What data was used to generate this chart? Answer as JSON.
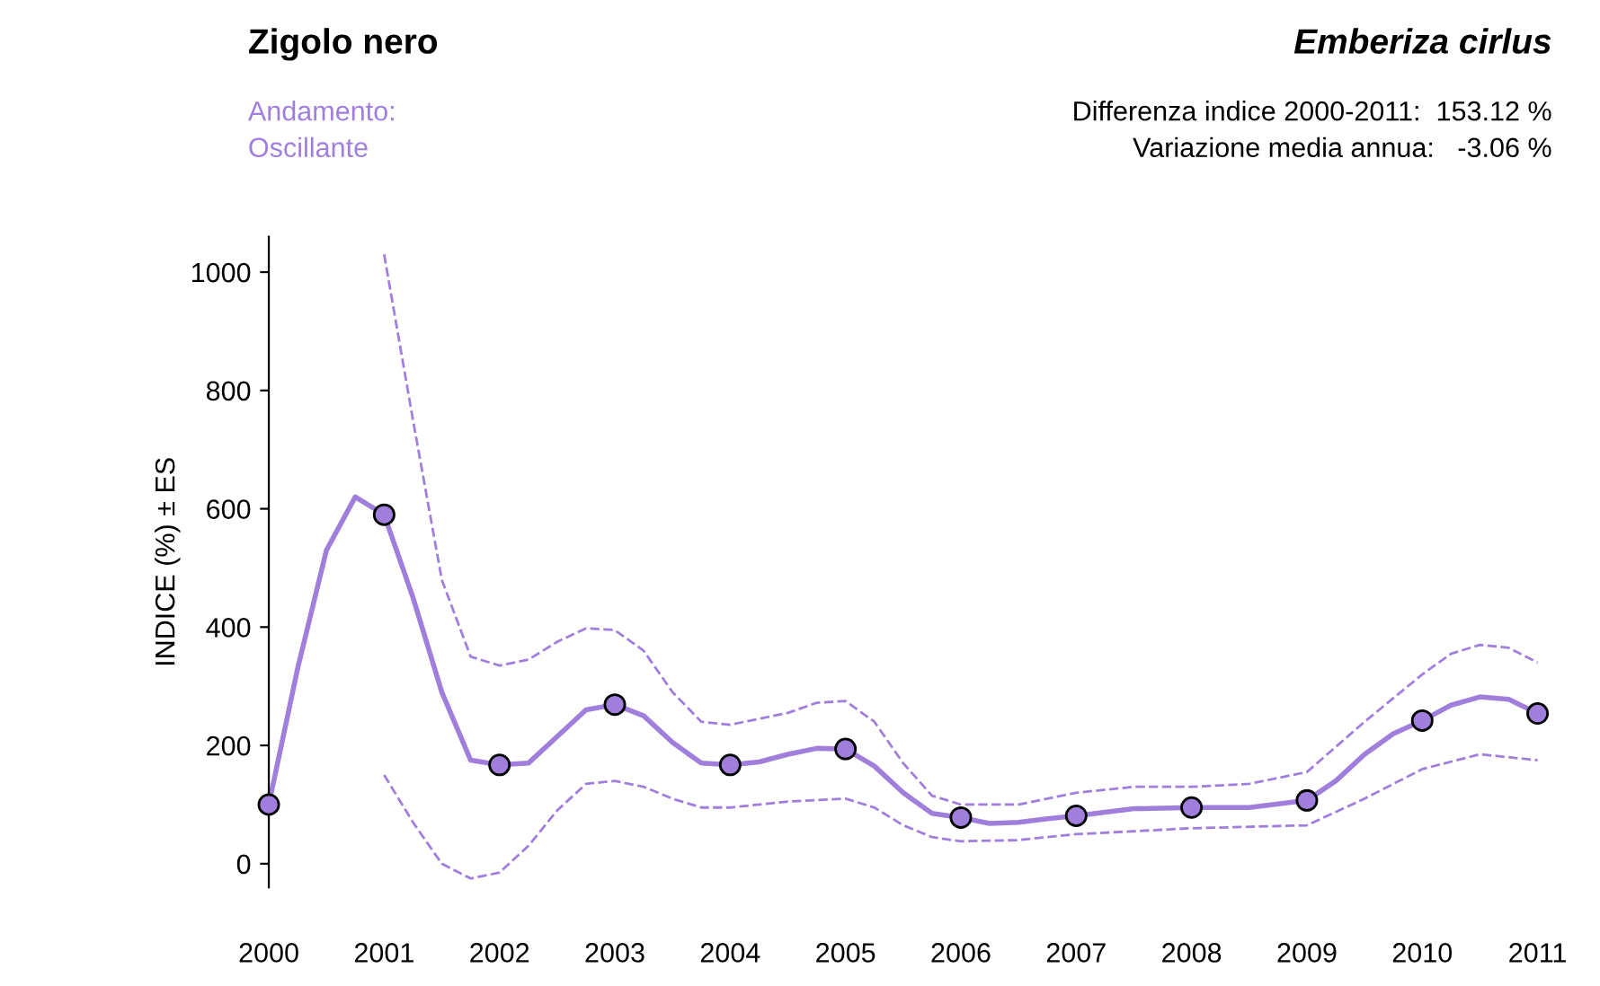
{
  "chart_data": {
    "type": "line",
    "title": "Zigolo nero",
    "subtitle": "Emberiza cirlus",
    "ylabel": "INDICE (%) ± ES",
    "annotations": [
      "Andamento:",
      "Oscillante",
      "Differenza indice 2000-2011:  153.12 %",
      "Variazione media annua:   -3.06 %"
    ],
    "xlim": [
      2000,
      2011
    ],
    "xticks": [
      2000,
      2001,
      2002,
      2003,
      2004,
      2005,
      2006,
      2007,
      2008,
      2009,
      2010,
      2011
    ],
    "ylim": [
      -40,
      1060
    ],
    "yticks": [
      0,
      200,
      400,
      600,
      800,
      1000
    ],
    "grid": false,
    "legend": false,
    "series": [
      {
        "line_style": "dashed",
        "color": "#a07fdc",
        "x": [
          2001,
          2001.25,
          2001.5,
          2001.75,
          2002,
          2002.25,
          2002.5,
          2002.75,
          2003,
          2003.25,
          2003.5,
          2003.75,
          2004,
          2004.5,
          2004.75,
          2005,
          2005.25,
          2005.5,
          2005.75,
          2006,
          2006.5,
          2007,
          2007.5,
          2008,
          2008.5,
          2009,
          2009.5,
          2010,
          2010.25,
          2010.5,
          2010.75,
          2011
        ],
        "values": [
          1030,
          750,
          480,
          350,
          335,
          345,
          375,
          398,
          395,
          360,
          290,
          240,
          235,
          255,
          272,
          275,
          240,
          170,
          115,
          100,
          100,
          120,
          130,
          130,
          135,
          155,
          240,
          320,
          355,
          370,
          365,
          340
        ]
      },
      {
        "line_style": "dashed",
        "color": "#a07fdc",
        "x": [
          2001,
          2001.25,
          2001.5,
          2001.75,
          2002,
          2002.25,
          2002.5,
          2002.75,
          2003,
          2003.25,
          2003.5,
          2003.75,
          2004,
          2004.5,
          2005,
          2005.25,
          2005.5,
          2005.75,
          2006,
          2006.5,
          2007,
          2008,
          2009,
          2009.5,
          2010,
          2010.5,
          2011
        ],
        "values": [
          150,
          70,
          0,
          -25,
          -15,
          30,
          90,
          135,
          140,
          130,
          110,
          95,
          95,
          105,
          110,
          95,
          65,
          45,
          38,
          40,
          50,
          60,
          65,
          110,
          160,
          185,
          175
        ]
      },
      {
        "line_style": "solid",
        "color": "#a07fdc",
        "x": [
          2000,
          2000.25,
          2000.5,
          2000.75,
          2001,
          2001.25,
          2001.5,
          2001.75,
          2002,
          2002.25,
          2002.5,
          2002.75,
          2003,
          2003.25,
          2003.5,
          2003.75,
          2004,
          2004.25,
          2004.5,
          2004.75,
          2005,
          2005.25,
          2005.5,
          2005.75,
          2006,
          2006.25,
          2006.5,
          2006.75,
          2007,
          2007.5,
          2008,
          2008.5,
          2009,
          2009.25,
          2009.5,
          2009.75,
          2010,
          2010.25,
          2010.5,
          2010.75,
          2011
        ],
        "values": [
          100,
          330,
          530,
          620,
          590,
          450,
          290,
          175,
          167,
          170,
          215,
          260,
          269,
          250,
          205,
          170,
          167,
          172,
          185,
          195,
          194,
          165,
          120,
          85,
          78,
          68,
          70,
          76,
          81,
          93,
          95,
          95,
          107,
          140,
          185,
          220,
          242,
          268,
          282,
          278,
          254
        ]
      },
      {
        "type": "scatter",
        "marker": "circle",
        "color": "#a07fdc",
        "x": [
          2000,
          2001,
          2002,
          2003,
          2004,
          2005,
          2006,
          2007,
          2008,
          2009,
          2010,
          2011
        ],
        "values": [
          100,
          590,
          167,
          269,
          167,
          194,
          78,
          81,
          95,
          107,
          242,
          254
        ]
      }
    ]
  }
}
